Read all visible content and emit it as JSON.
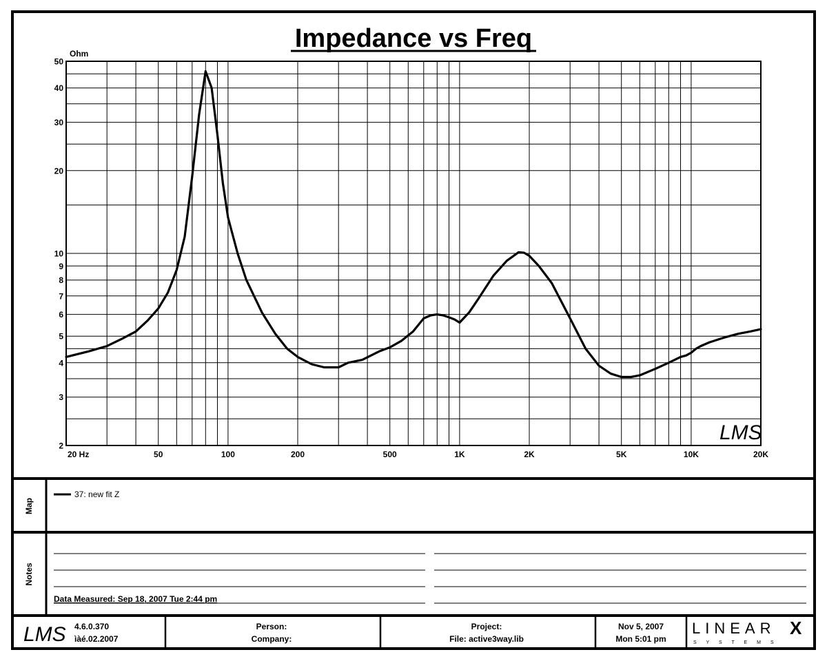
{
  "chart_data": {
    "type": "line",
    "title": "Impedance vs Freq",
    "ylabel": "Ohm",
    "xscale": "log",
    "yscale": "log",
    "xlim": [
      20,
      20000
    ],
    "ylim": [
      2,
      50
    ],
    "grid": true,
    "x_ticks": [
      {
        "value": 20,
        "label": "20  Hz"
      },
      {
        "value": 50,
        "label": "50"
      },
      {
        "value": 100,
        "label": "100"
      },
      {
        "value": 200,
        "label": "200"
      },
      {
        "value": 500,
        "label": "500"
      },
      {
        "value": 1000,
        "label": "1K"
      },
      {
        "value": 2000,
        "label": "2K"
      },
      {
        "value": 5000,
        "label": "5K"
      },
      {
        "value": 10000,
        "label": "10K"
      },
      {
        "value": 20000,
        "label": "20K"
      }
    ],
    "y_ticks": [
      {
        "value": 50,
        "label": "50"
      },
      {
        "value": 40,
        "label": "40"
      },
      {
        "value": 30,
        "label": "30"
      },
      {
        "value": 20,
        "label": "20"
      },
      {
        "value": 10,
        "label": "10"
      },
      {
        "value": 9,
        "label": "9"
      },
      {
        "value": 8,
        "label": "8"
      },
      {
        "value": 7,
        "label": "7"
      },
      {
        "value": 6,
        "label": "6"
      },
      {
        "value": 5,
        "label": "5"
      },
      {
        "value": 4,
        "label": "4"
      },
      {
        "value": 3,
        "label": "3"
      },
      {
        "value": 2,
        "label": "2"
      }
    ],
    "series": [
      {
        "name": "37: new fit  Z",
        "x": [
          20,
          25,
          30,
          35,
          40,
          45,
          50,
          55,
          60,
          65,
          70,
          75,
          80,
          85,
          90,
          95,
          100,
          110,
          120,
          140,
          160,
          180,
          200,
          230,
          260,
          300,
          330,
          380,
          450,
          500,
          560,
          630,
          700,
          750,
          800,
          850,
          900,
          950,
          1000,
          1050,
          1100,
          1200,
          1400,
          1600,
          1800,
          1900,
          2000,
          2200,
          2500,
          3000,
          3500,
          4000,
          4500,
          5000,
          5500,
          6000,
          7000,
          8000,
          9000,
          9500,
          10000,
          10500,
          11000,
          12000,
          14000,
          16000,
          18000,
          20000
        ],
        "values": [
          4.2,
          4.4,
          4.6,
          4.9,
          5.2,
          5.7,
          6.3,
          7.2,
          8.7,
          11.5,
          19,
          32,
          46,
          40,
          27,
          18,
          13.5,
          10,
          8,
          6.1,
          5.1,
          4.5,
          4.2,
          3.95,
          3.85,
          3.85,
          4.0,
          4.1,
          4.4,
          4.55,
          4.8,
          5.2,
          5.8,
          5.95,
          6.0,
          5.95,
          5.85,
          5.75,
          5.6,
          5.85,
          6.1,
          6.8,
          8.3,
          9.4,
          10.1,
          10.05,
          9.8,
          9.0,
          7.8,
          5.8,
          4.5,
          3.9,
          3.65,
          3.55,
          3.55,
          3.6,
          3.8,
          4.0,
          4.2,
          4.25,
          4.35,
          4.5,
          4.6,
          4.75,
          4.95,
          5.1,
          5.2,
          5.3
        ]
      }
    ]
  },
  "watermark_logo": "LMS",
  "map": {
    "label": "Map",
    "legend_entry": "37: new fit  Z"
  },
  "notes": {
    "label": "Notes",
    "measured": "Data Measured: Sep 18, 2007  Tue  2:44 pm"
  },
  "footer": {
    "logo": "LMS",
    "version": "4.6.0.370",
    "build_date": "ìàé.02.2007",
    "person_label": "Person:",
    "company_label": "Company:",
    "project_label": "Project:",
    "file_label": "File: active3way.lib",
    "date": "Nov  5, 2007",
    "time": "Mon  5:01 pm",
    "brand": "LINEAR",
    "brand_x": "X",
    "brand_sub": "S Y S T E M S"
  }
}
